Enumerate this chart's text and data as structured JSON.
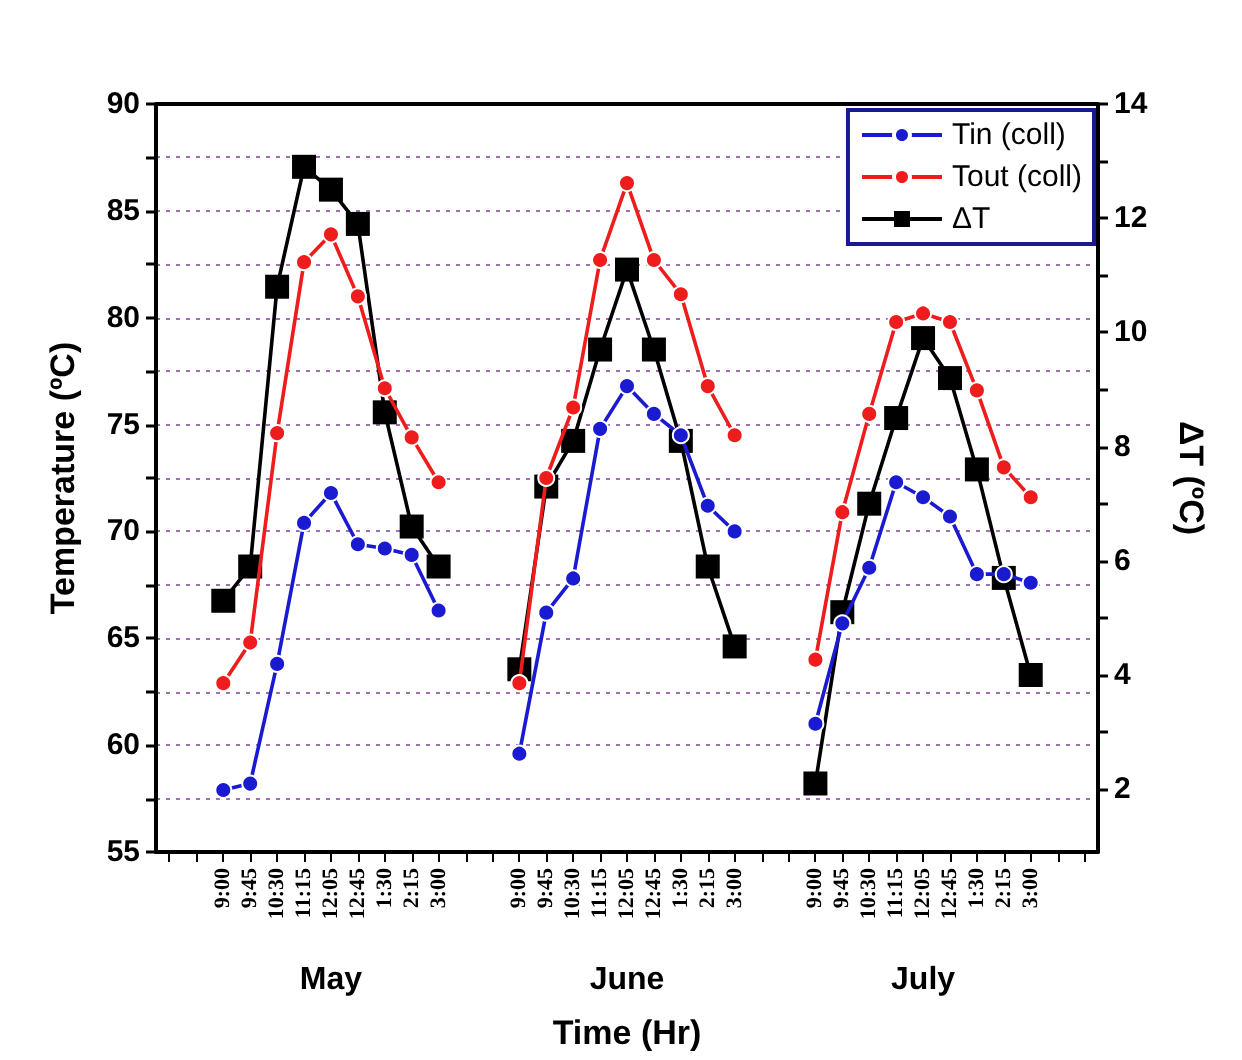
{
  "chart_data": {
    "type": "line",
    "xlabel": "Time (Hr)",
    "ylabel": "Temperature (ºC)",
    "y2label": "ΔT (ºC)",
    "categories": [
      null,
      null,
      "9:00",
      "9:45",
      "10:30",
      "11:15",
      "12:05",
      "12:45",
      "1:30",
      "2:15",
      "3:00",
      null,
      null,
      "9:00",
      "9:45",
      "10:30",
      "11:15",
      "12:05",
      "12:45",
      "1:30",
      "2:15",
      "3:00",
      null,
      null,
      "9:00",
      "9:45",
      "10:30",
      "11:15",
      "12:05",
      "12:45",
      "1:30",
      "2:15",
      "3:00",
      null,
      null
    ],
    "series": [
      {
        "name": "Tin (coll)",
        "color": "#1a1ad0",
        "marker": "circle",
        "values": [
          null,
          null,
          57.9,
          58.2,
          63.8,
          70.4,
          71.8,
          69.4,
          69.2,
          68.9,
          66.3,
          null,
          null,
          59.6,
          66.2,
          67.8,
          74.8,
          76.8,
          75.5,
          74.5,
          71.2,
          70.0,
          null,
          null,
          61.0,
          65.7,
          68.3,
          72.3,
          71.6,
          70.7,
          68.0,
          68.0,
          67.6,
          null,
          null
        ]
      },
      {
        "name": "Tout (coll)",
        "color": "#ee1c1c",
        "marker": "circle",
        "values": [
          null,
          null,
          62.9,
          64.8,
          74.6,
          82.6,
          83.9,
          81.0,
          76.7,
          74.4,
          72.3,
          null,
          null,
          62.9,
          72.5,
          75.8,
          82.7,
          86.3,
          82.7,
          81.1,
          76.8,
          74.5,
          null,
          null,
          64.0,
          70.9,
          75.5,
          79.8,
          80.2,
          79.8,
          76.6,
          73.0,
          71.6,
          null,
          null
        ]
      },
      {
        "name": "ΔT",
        "color": "#000000",
        "marker": "square",
        "axis": "y2",
        "values": [
          null,
          null,
          5.3,
          5.9,
          10.8,
          12.9,
          12.5,
          11.9,
          8.6,
          6.6,
          5.9,
          null,
          null,
          4.1,
          7.3,
          8.1,
          9.7,
          11.1,
          9.7,
          8.1,
          5.9,
          4.5,
          null,
          null,
          2.1,
          5.1,
          7.0,
          8.5,
          9.9,
          9.2,
          7.6,
          5.7,
          4.0,
          null,
          null
        ]
      }
    ],
    "ylim": [
      55,
      90
    ],
    "yticks": [
      55,
      {
        "value": 57.5,
        "label": null
      },
      60,
      {
        "value": 62.5,
        "label": null
      },
      65,
      {
        "value": 67.5,
        "label": null
      },
      70,
      {
        "value": 72.5,
        "label": null
      },
      75,
      {
        "value": 77.5,
        "label": null
      },
      80,
      {
        "value": 82.5,
        "label": null
      },
      85,
      {
        "value": 87.5,
        "label": null
      },
      90
    ],
    "y2lim": [
      0.9,
      14
    ],
    "y2ticks": [
      2,
      {
        "value": 3,
        "label": null
      },
      4,
      {
        "value": 5,
        "label": null
      },
      6,
      {
        "value": 7,
        "label": null
      },
      8,
      {
        "value": 9,
        "label": null
      },
      10,
      {
        "value": 11,
        "label": null
      },
      12,
      {
        "value": 13,
        "label": null
      },
      14
    ],
    "grid": "y",
    "legend": "top right",
    "line_style": "solid",
    "annotations": [
      "May",
      "June",
      "July"
    ]
  }
}
